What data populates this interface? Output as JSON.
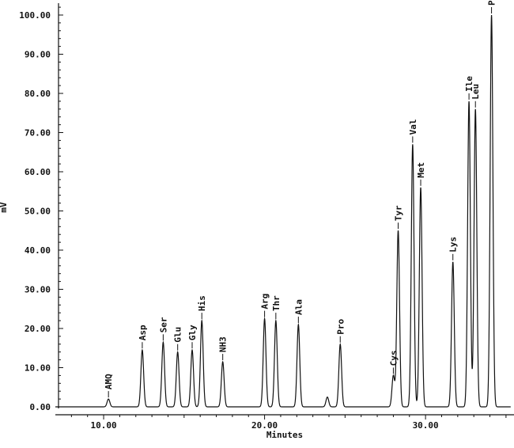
{
  "chart_data": {
    "type": "line",
    "xlabel": "Minutes",
    "ylabel": "mV",
    "xlim": [
      7.0,
      35.3
    ],
    "ylim": [
      0,
      104
    ],
    "x_ticks": [
      {
        "value": 10,
        "label": "10.00"
      },
      {
        "value": 20,
        "label": "20.00"
      },
      {
        "value": 30,
        "label": "30.00"
      }
    ],
    "y_ticks": [
      {
        "value": 0,
        "label": "0.00"
      },
      {
        "value": 10,
        "label": "10.00"
      },
      {
        "value": 20,
        "label": "20.00"
      },
      {
        "value": 30,
        "label": "30.00"
      },
      {
        "value": 40,
        "label": "40.00"
      },
      {
        "value": 50,
        "label": "50.00"
      },
      {
        "value": 60,
        "label": "60.00"
      },
      {
        "value": 70,
        "label": "70.00"
      },
      {
        "value": 80,
        "label": "80.00"
      },
      {
        "value": 90,
        "label": "90.00"
      },
      {
        "value": 100,
        "label": "100.00"
      }
    ],
    "peaks": [
      {
        "name": "AMQ",
        "rt": 10.3,
        "height": 2.0
      },
      {
        "name": "Asp",
        "rt": 12.4,
        "height": 14.5
      },
      {
        "name": "Ser",
        "rt": 13.7,
        "height": 16.5
      },
      {
        "name": "Glu",
        "rt": 14.6,
        "height": 14.0
      },
      {
        "name": "Gly",
        "rt": 15.5,
        "height": 14.5
      },
      {
        "name": "His",
        "rt": 16.1,
        "height": 22.0
      },
      {
        "name": "NH3",
        "rt": 17.4,
        "height": 11.5
      },
      {
        "name": "Arg",
        "rt": 20.0,
        "height": 22.5
      },
      {
        "name": "Thr",
        "rt": 20.7,
        "height": 22.0
      },
      {
        "name": "Ala",
        "rt": 22.1,
        "height": 21.0
      },
      {
        "name": "Pro",
        "rt": 24.7,
        "height": 16.0
      },
      {
        "name": "Cys",
        "rt": 28.0,
        "height": 8.0
      },
      {
        "name": "Tyr",
        "rt": 28.3,
        "height": 45.0
      },
      {
        "name": "Val",
        "rt": 29.2,
        "height": 67.0
      },
      {
        "name": "Met",
        "rt": 29.7,
        "height": 56.0
      },
      {
        "name": "Lys",
        "rt": 31.7,
        "height": 37.0
      },
      {
        "name": "Ile",
        "rt": 32.7,
        "height": 78.0
      },
      {
        "name": "Leu",
        "rt": 33.1,
        "height": 76.0
      },
      {
        "name": "Phe",
        "rt": 34.1,
        "height": 100.0
      }
    ],
    "unlabeled_peaks": [
      {
        "rt": 23.9,
        "height": 2.5
      }
    ]
  }
}
